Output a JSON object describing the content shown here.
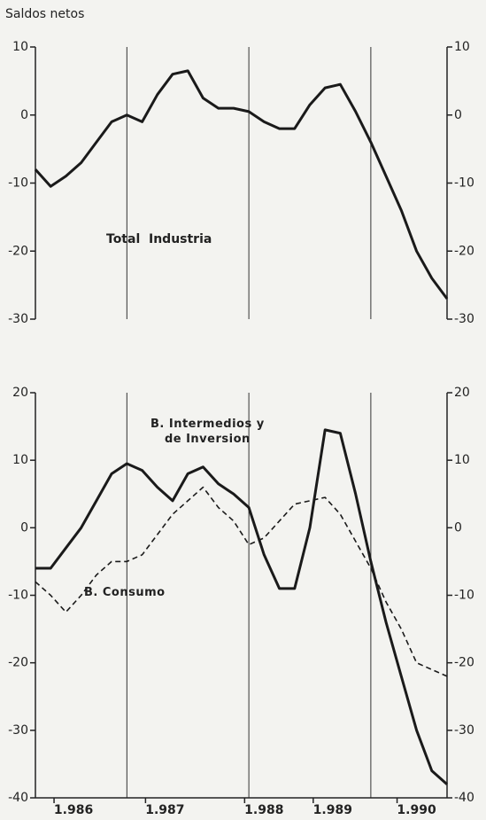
{
  "chart_data": [
    {
      "type": "line",
      "title": "Saldos netos",
      "annotation": "Total  Industria",
      "x": [
        0,
        1,
        2,
        3,
        4,
        5,
        6,
        7,
        8,
        9,
        10,
        11,
        12,
        13,
        14,
        15,
        16,
        17,
        18,
        19,
        20,
        21,
        22,
        23,
        24,
        25,
        26,
        27
      ],
      "values": [
        -8,
        -10.5,
        -9,
        -7,
        -4,
        -1,
        0,
        -1,
        3,
        6,
        6.5,
        2.5,
        1,
        1,
        0.5,
        -1,
        -2,
        -2,
        1.5,
        4,
        4.5,
        0.5,
        -4,
        -9,
        -14,
        -20,
        -24,
        -27
      ],
      "color": "#1a1a1a",
      "xlim": [
        0,
        27
      ],
      "xgrid": [
        6,
        14,
        22
      ],
      "ylim": [
        -30,
        10
      ],
      "yticks": [
        -30,
        -20,
        -10,
        0,
        10
      ]
    },
    {
      "type": "line",
      "x": [
        0,
        1,
        2,
        3,
        4,
        5,
        6,
        7,
        8,
        9,
        10,
        11,
        12,
        13,
        14,
        15,
        16,
        17,
        18,
        19,
        20,
        21,
        22,
        23,
        24,
        25,
        26,
        27
      ],
      "series": [
        {
          "name": "B. Intermedios y\nde Inversion",
          "color": "#1a1a1a",
          "dash": false,
          "values": [
            -6,
            -6,
            -3,
            0,
            4,
            8,
            9.5,
            8.5,
            6,
            4,
            8,
            9,
            6.5,
            5,
            3,
            -4,
            -9,
            -9,
            0,
            14.5,
            14,
            5,
            -5,
            -14,
            -22,
            -30,
            -36,
            -38
          ]
        },
        {
          "name": "B. Consumo",
          "color": "#1a1a1a",
          "dash": true,
          "values": [
            -8,
            -10,
            -12.5,
            -10,
            -7,
            -5,
            -5,
            -4,
            -1,
            2,
            4,
            6,
            3,
            1,
            -2.5,
            -1.5,
            1,
            3.5,
            4,
            4.5,
            2,
            -2,
            -6,
            -11,
            -15,
            -20,
            -21,
            -22
          ]
        }
      ],
      "xlim": [
        0,
        27
      ],
      "xgrid": [
        6,
        14,
        22
      ],
      "xticks": [
        {
          "value": 2.5,
          "label": "1.986"
        },
        {
          "value": 8.5,
          "label": "1.987"
        },
        {
          "value": 15,
          "label": "1.988"
        },
        {
          "value": 19.5,
          "label": "1.989"
        },
        {
          "value": 25,
          "label": "1.990"
        }
      ],
      "ylim": [
        -40,
        20
      ],
      "yticks": [
        -40,
        -30,
        -20,
        -10,
        0,
        10,
        20
      ]
    }
  ]
}
